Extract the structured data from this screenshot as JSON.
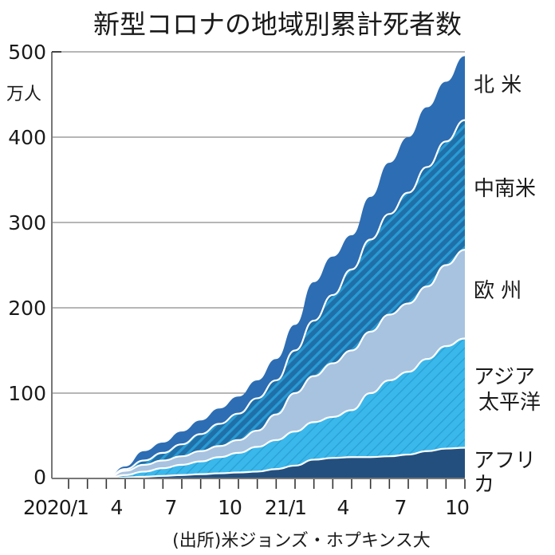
{
  "title": "新型コロナの地域別累計死者数",
  "y_unit": "万人",
  "y_ticks": [
    "500",
    "400",
    "300",
    "200",
    "100",
    "0"
  ],
  "x_ticks": [
    "2020/1",
    "4",
    "7",
    "10",
    "21/1",
    "4",
    "7",
    "10"
  ],
  "source": "(出所)米ジョンズ・ホプキンス大",
  "region_labels": {
    "north_america": "北 米",
    "latin_america": "中南米",
    "europe": "欧 州",
    "asia_pacific_1": "アジア",
    "asia_pacific_2": "太平洋",
    "africa": "アフリカ"
  },
  "colors": {
    "north_america": "#2d6db3",
    "latin_america": "#1f6fa8",
    "latin_america_stripe": "#2a9bd4",
    "europe": "#a8c3e0",
    "asia_pacific": "#3ab8ec",
    "asia_pacific_stripe": "#2aa2d6",
    "africa": "#234f7e",
    "grid": "#888888"
  },
  "chart_data": {
    "type": "area",
    "stacked": true,
    "title": "新型コロナの地域別累計死者数",
    "xlabel": "",
    "ylabel": "万人",
    "ylim": [
      0,
      500
    ],
    "yticks": [
      0,
      100,
      200,
      300,
      400,
      500
    ],
    "grid": true,
    "legend_position": "right (inline labels)",
    "x": [
      "2020/1",
      "2020/2",
      "2020/3",
      "2020/4",
      "2020/5",
      "2020/6",
      "2020/7",
      "2020/8",
      "2020/9",
      "2020/10",
      "2020/11",
      "2020/12",
      "2021/1",
      "2021/2",
      "2021/3",
      "2021/4",
      "2021/5",
      "2021/6",
      "2021/7",
      "2021/8",
      "2021/9",
      "2021/10"
    ],
    "x_tick_labels": [
      "2020/1",
      "4",
      "7",
      "10",
      "21/1",
      "4",
      "7",
      "10"
    ],
    "series_cumulative_tops": [
      {
        "name": "アフリカ",
        "values": [
          0,
          0,
          0,
          1,
          2,
          3,
          4,
          5,
          6,
          7,
          8,
          11,
          15,
          22,
          24,
          25,
          25,
          26,
          28,
          32,
          35,
          36
        ]
      },
      {
        "name": "アジア太平洋",
        "values": [
          0,
          0,
          0,
          4,
          8,
          12,
          16,
          20,
          25,
          30,
          37,
          45,
          55,
          66,
          72,
          80,
          100,
          115,
          125,
          140,
          155,
          164
        ]
      },
      {
        "name": "欧州",
        "values": [
          0,
          0,
          0,
          9,
          16,
          21,
          26,
          32,
          38,
          45,
          56,
          75,
          100,
          120,
          135,
          150,
          172,
          192,
          205,
          225,
          250,
          268
        ]
      },
      {
        "name": "中南米",
        "values": [
          0,
          0,
          0,
          11,
          21,
          30,
          40,
          52,
          64,
          76,
          94,
          115,
          150,
          185,
          215,
          245,
          280,
          310,
          335,
          365,
          395,
          420
        ]
      },
      {
        "name": "北米",
        "values": [
          0,
          0,
          0,
          14,
          32,
          42,
          55,
          68,
          82,
          96,
          115,
          140,
          180,
          230,
          260,
          285,
          330,
          370,
          400,
          435,
          465,
          495
        ]
      }
    ],
    "annotations": [
      "(出所)米ジョンズ・ホプキンス大"
    ]
  }
}
